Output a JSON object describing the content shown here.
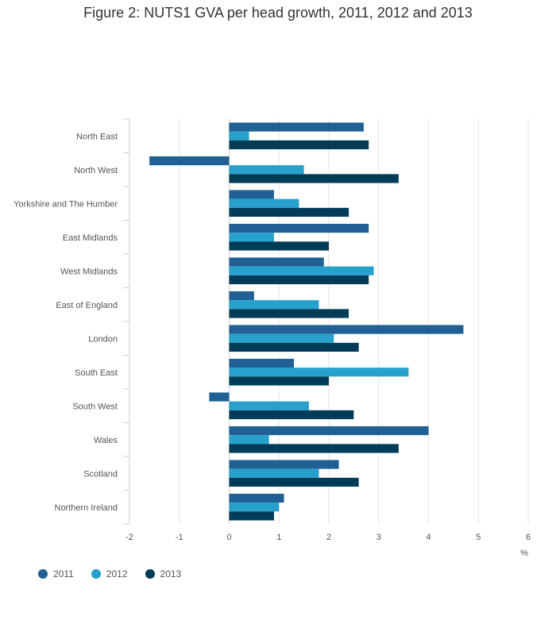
{
  "chart_data": {
    "type": "bar",
    "orientation": "horizontal",
    "title": "Figure 2: NUTS1 GVA per head growth, 2011, 2012 and 2013",
    "xlabel": "%",
    "ylabel": "",
    "xlim": [
      -2,
      6
    ],
    "xticks": [
      -2,
      -1,
      0,
      1,
      2,
      3,
      4,
      5,
      6
    ],
    "grid": true,
    "legend": "bottom-left",
    "categories": [
      "North East",
      "North West",
      "Yorkshire and The Humber",
      "East Midlands",
      "West Midlands",
      "East of England",
      "London",
      "South East",
      "South West",
      "Wales",
      "Scotland",
      "Northern Ireland"
    ],
    "series": [
      {
        "name": "2011",
        "color": "#206095",
        "values": [
          2.7,
          -1.6,
          0.9,
          2.8,
          1.9,
          0.5,
          4.7,
          1.3,
          -0.4,
          4.0,
          2.2,
          1.1
        ]
      },
      {
        "name": "2012",
        "color": "#27a0cc",
        "values": [
          0.4,
          1.5,
          1.4,
          0.9,
          2.9,
          1.8,
          2.1,
          3.6,
          1.6,
          0.8,
          1.8,
          1.0
        ]
      },
      {
        "name": "2013",
        "color": "#003c57",
        "values": [
          2.8,
          3.4,
          2.4,
          2.0,
          2.8,
          2.4,
          2.6,
          2.0,
          2.5,
          3.4,
          2.6,
          0.9
        ]
      }
    ]
  }
}
